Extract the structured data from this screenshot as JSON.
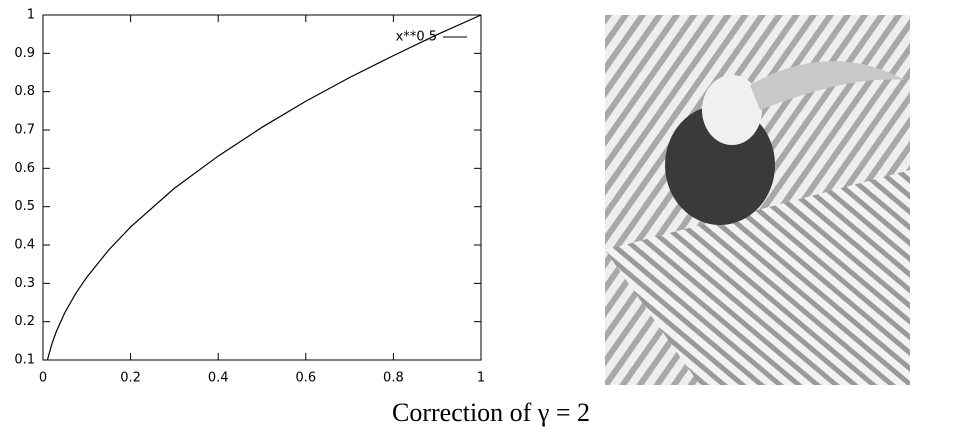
{
  "chart_data": {
    "type": "line",
    "x": [
      0.01,
      0.02,
      0.03,
      0.05,
      0.075,
      0.1,
      0.15,
      0.2,
      0.3,
      0.4,
      0.5,
      0.6,
      0.7,
      0.8,
      0.9,
      1
    ],
    "series": [
      {
        "name": "x**0.5",
        "color": "#000000",
        "values": [
          0.1,
          0.141,
          0.173,
          0.224,
          0.274,
          0.316,
          0.387,
          0.447,
          0.548,
          0.632,
          0.707,
          0.775,
          0.837,
          0.894,
          0.949,
          1
        ]
      }
    ],
    "xlim": [
      0,
      1
    ],
    "xticks": [
      0,
      0.2,
      0.4,
      0.6,
      0.8,
      1
    ],
    "ylim": [
      0.1,
      1
    ],
    "yticks": [
      0.1,
      0.2,
      0.3,
      0.4,
      0.5,
      0.6,
      0.7,
      0.8,
      0.9,
      1
    ],
    "legend": "top-right",
    "grid": false
  },
  "caption": "Correction of γ = 2"
}
